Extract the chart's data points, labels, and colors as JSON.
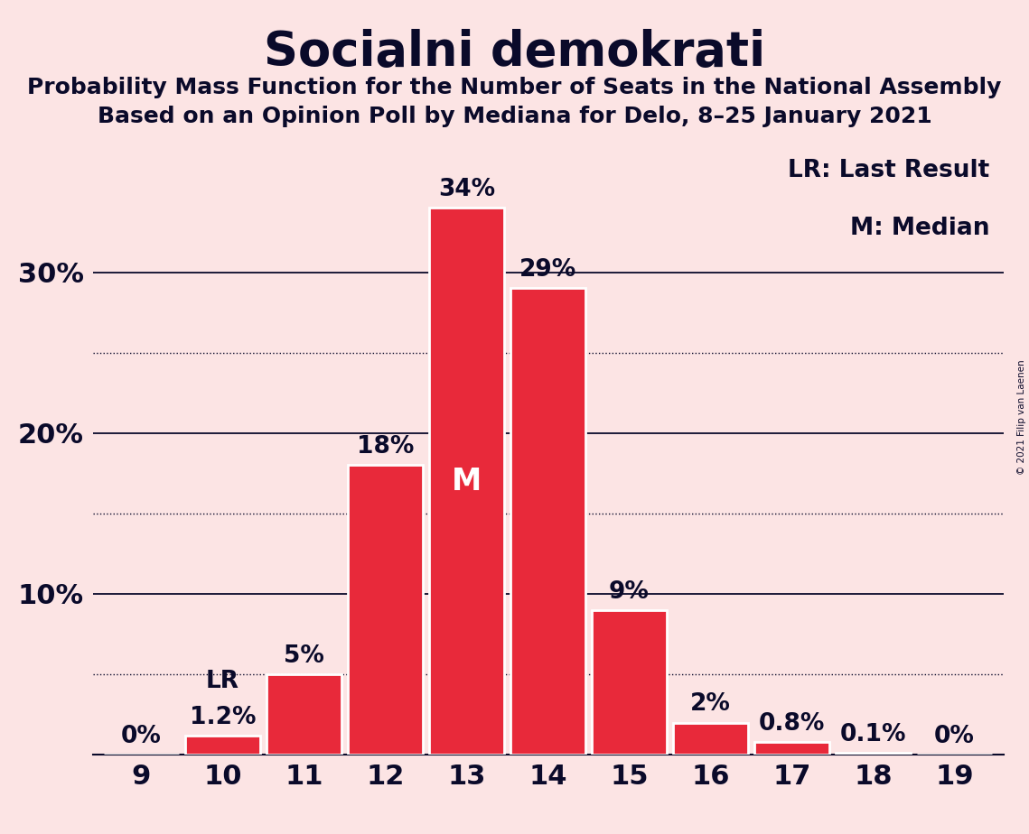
{
  "title": "Socialni demokrati",
  "subtitle1": "Probability Mass Function for the Number of Seats in the National Assembly",
  "subtitle2": "Based on an Opinion Poll by Mediana for Delo, 8–25 January 2021",
  "copyright": "© 2021 Filip van Laenen",
  "categories": [
    9,
    10,
    11,
    12,
    13,
    14,
    15,
    16,
    17,
    18,
    19
  ],
  "values": [
    0.0,
    1.2,
    5.0,
    18.0,
    34.0,
    29.0,
    9.0,
    2.0,
    0.8,
    0.1,
    0.0
  ],
  "labels": [
    "0%",
    "1.2%",
    "5%",
    "18%",
    "34%",
    "29%",
    "9%",
    "2%",
    "0.8%",
    "0.1%",
    "0%"
  ],
  "bar_color": "#e8293a",
  "background_color": "#fce4e4",
  "bar_edge_color": "#ffffff",
  "title_color": "#0a0a2a",
  "label_color": "#0a0a2a",
  "median_seat": 13,
  "lr_seat": 10,
  "yticks": [
    10,
    20,
    30
  ],
  "ylim": [
    0,
    38
  ],
  "legend_text1": "LR: Last Result",
  "legend_text2": "M: Median",
  "solid_line_color": "#0a0a2a",
  "dotted_line_color": "#0a0a2a",
  "label_fontsize": 19,
  "tick_fontsize": 22,
  "title_fontsize": 38,
  "subtitle_fontsize": 18,
  "legend_fontsize": 19
}
